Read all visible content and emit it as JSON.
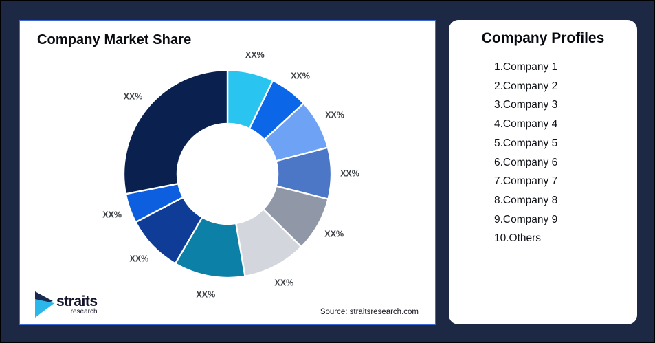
{
  "frame": {
    "background": "#1C2844",
    "outer_border": "#000000"
  },
  "chart_card": {
    "title": "Company Market Share",
    "source": "Source: straitsresearch.com",
    "border_color": "#3E68D8"
  },
  "logo": {
    "wordmark": "straits",
    "subtext": "research",
    "icon_navy": "#1B2A4E",
    "icon_cyan": "#2BB7EA"
  },
  "profiles_card": {
    "title": "Company Profiles",
    "items": [
      "1.Company 1",
      "2.Company 2",
      "3.Company 3",
      "4.Company 4",
      "5.Company 5",
      "6.Company 6",
      "7.Company 7",
      "8.Company 8",
      "9.Company 9",
      "10.Others"
    ]
  },
  "chart_data": {
    "type": "pie",
    "subtype": "donut",
    "title": "Company Market Share",
    "unit": "percent-of-circle (estimated from arc angles)",
    "labels_shown_as": "XX%",
    "start_angle_deg": 0,
    "direction": "clockwise",
    "label_color": "#3E4247",
    "segments": [
      {
        "label": "XX%",
        "value": 7.2,
        "color": "#29C4F0"
      },
      {
        "label": "XX%",
        "value": 5.9,
        "color": "#0B66E8"
      },
      {
        "label": "XX%",
        "value": 7.8,
        "color": "#6DA2F5"
      },
      {
        "label": "XX%",
        "value": 8.0,
        "color": "#4C77C6"
      },
      {
        "label": "XX%",
        "value": 8.5,
        "color": "#9097A6"
      },
      {
        "label": "XX%",
        "value": 9.9,
        "color": "#D3D6DC"
      },
      {
        "label": "XX%",
        "value": 11.1,
        "color": "#0C80A6"
      },
      {
        "label": "XX%",
        "value": 8.9,
        "color": "#0E3C96"
      },
      {
        "label": "XX%",
        "value": 4.6,
        "color": "#0D5FE0"
      },
      {
        "label": "XX%",
        "value": 28.1,
        "color": "#0A2150"
      }
    ]
  }
}
